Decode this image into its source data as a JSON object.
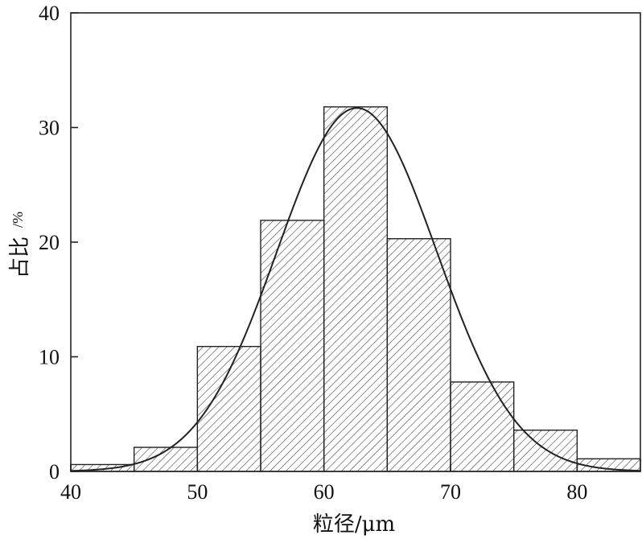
{
  "chart_data": {
    "type": "bar",
    "title": "",
    "xlabel": "粒径/μm",
    "ylabel_main": "占比",
    "ylabel_unit": "/%",
    "xlim": [
      40,
      85
    ],
    "ylim": [
      0,
      40
    ],
    "xticks": [
      40,
      50,
      60,
      70,
      80
    ],
    "yticks": [
      0,
      10,
      20,
      30,
      40
    ],
    "grid": false,
    "bin_width": 5,
    "bins": [
      {
        "start": 40,
        "end": 45,
        "value": 0.6
      },
      {
        "start": 45,
        "end": 50,
        "value": 2.1
      },
      {
        "start": 50,
        "end": 55,
        "value": 10.9
      },
      {
        "start": 55,
        "end": 60,
        "value": 21.9
      },
      {
        "start": 60,
        "end": 65,
        "value": 31.8
      },
      {
        "start": 65,
        "end": 70,
        "value": 20.3
      },
      {
        "start": 70,
        "end": 75,
        "value": 7.8
      },
      {
        "start": 75,
        "end": 80,
        "value": 3.6
      },
      {
        "start": 80,
        "end": 85,
        "value": 1.1
      }
    ],
    "fit_curve": {
      "type": "normal",
      "mean": 62.6,
      "sigma": 6.3,
      "peak": 31.7
    },
    "colors": {
      "bar_fill_pattern": "#333333",
      "bar_edge": "#222222",
      "curve": "#222222",
      "axis": "#222222"
    }
  }
}
